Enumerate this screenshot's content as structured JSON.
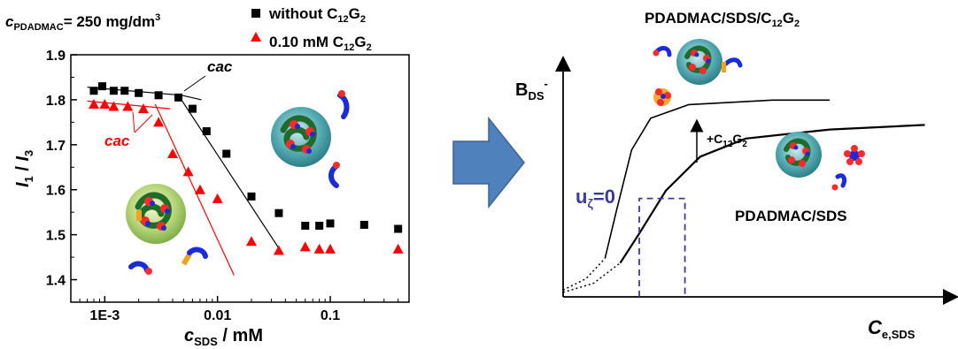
{
  "chart_data": [
    {
      "type": "scatter",
      "annotation_conc": {
        "symbol": "c",
        "sub": "PDADMAC",
        "text": "= 250 mg/dm",
        "sup": "3"
      },
      "xscale": "log",
      "xlim": [
        0.0005,
        0.5
      ],
      "ylim": [
        1.35,
        1.9
      ],
      "xticks": [
        {
          "value": 0.001,
          "label": "1E-3"
        },
        {
          "value": 0.01,
          "label": "0.01"
        },
        {
          "value": 0.1,
          "label": "0.1"
        }
      ],
      "yticks": [
        {
          "value": 1.4,
          "label": "1.4"
        },
        {
          "value": 1.5,
          "label": "1.5"
        },
        {
          "value": 1.6,
          "label": "1.6"
        },
        {
          "value": 1.7,
          "label": "1.7"
        },
        {
          "value": 1.8,
          "label": "1.8"
        },
        {
          "value": 1.9,
          "label": "1.9"
        }
      ],
      "xlabel": {
        "symbol": "c",
        "sub": "SDS",
        "rest": " / mM"
      },
      "ylabel": {
        "a": "I",
        "a_sub": "1",
        "mid": " / ",
        "b": "I",
        "b_sub": "3"
      },
      "cac_label": "cac",
      "series": [
        {
          "legend": {
            "text": "without C",
            "sub1": "12",
            "mid": "G",
            "sub2": "2"
          },
          "marker": "square",
          "color": "#000000",
          "x": [
            0.0008,
            0.00095,
            0.0012,
            0.0015,
            0.002,
            0.003,
            0.0045,
            0.006,
            0.008,
            0.012,
            0.02,
            0.035,
            0.06,
            0.08,
            0.1,
            0.2,
            0.4
          ],
          "y": [
            1.82,
            1.83,
            1.82,
            1.82,
            1.815,
            1.81,
            1.805,
            1.78,
            1.73,
            1.68,
            1.585,
            1.548,
            1.52,
            1.52,
            1.525,
            1.522,
            1.513
          ]
        },
        {
          "legend": {
            "text": "0.10 mM C",
            "sub1": "12",
            "mid": "G",
            "sub2": "2"
          },
          "marker": "triangle",
          "color": "#ff0000",
          "x": [
            0.0008,
            0.001,
            0.0012,
            0.0016,
            0.0022,
            0.003,
            0.004,
            0.0055,
            0.007,
            0.01,
            0.02,
            0.035,
            0.06,
            0.08,
            0.1,
            0.4
          ],
          "y": [
            1.79,
            1.79,
            1.785,
            1.785,
            1.78,
            1.75,
            1.68,
            1.64,
            1.6,
            1.58,
            1.485,
            1.465,
            1.473,
            1.468,
            1.468,
            1.468
          ]
        }
      ],
      "fits": [
        {
          "color": "#000000",
          "points": [
            [
              0.0007,
              1.828
            ],
            [
              0.0048,
              1.81
            ],
            [
              0.0072,
              1.8
            ]
          ]
        },
        {
          "color": "#000000",
          "points": [
            [
              0.0045,
              1.81
            ],
            [
              0.035,
              1.47
            ]
          ]
        },
        {
          "color": "#ff0000",
          "points": [
            [
              0.0007,
              1.797
            ],
            [
              0.0038,
              1.78
            ]
          ]
        },
        {
          "color": "#ff0000",
          "points": [
            [
              0.0028,
              1.79
            ],
            [
              0.014,
              1.41
            ]
          ]
        }
      ]
    },
    {
      "type": "line",
      "ylabel": {
        "main": "B",
        "sub": "DS",
        "sup": "-"
      },
      "xlabel": {
        "main": "C",
        "sub": "e,SDS"
      },
      "top_label": {
        "text": "PDADMAC/SDS/C",
        "sub1": "12",
        "mid": "G",
        "sub2": "2"
      },
      "bottom_label": "PDADMAC/SDS",
      "arrow_label": {
        "text": "+C",
        "sub1": "12",
        "mid": "G",
        "sub2": "2"
      },
      "zeta_label": {
        "main": "u",
        "sub": "ζ",
        "rest": "=0"
      },
      "xlim": [
        0,
        1
      ],
      "ylim": [
        0,
        1
      ],
      "curves": [
        {
          "name": "",
          "points": [
            [
              0,
              0.03
            ],
            [
              0.06,
              0.08
            ],
            [
              0.11,
              0.17
            ],
            [
              0.14,
              0.38
            ],
            [
              0.18,
              0.65
            ],
            [
              0.23,
              0.79
            ],
            [
              0.33,
              0.85
            ],
            [
              0.55,
              0.87
            ],
            [
              0.7,
              0.87
            ]
          ],
          "dashed_until": 0.13
        },
        {
          "name": "",
          "points": [
            [
              0,
              0.02
            ],
            [
              0.08,
              0.06
            ],
            [
              0.15,
              0.15
            ],
            [
              0.2,
              0.28
            ],
            [
              0.27,
              0.47
            ],
            [
              0.36,
              0.62
            ],
            [
              0.48,
              0.7
            ],
            [
              0.7,
              0.74
            ],
            [
              0.95,
              0.76
            ]
          ],
          "dashed_until": 0.19
        },
        {
          "name": "",
          "points": [
            [
              0.2,
              0.0
            ],
            [
              0.2,
              0.435
            ],
            [
              0.32,
              0.435
            ],
            [
              0.32,
              0.0
            ]
          ],
          "dashed_until": 1.01
        }
      ]
    }
  ]
}
